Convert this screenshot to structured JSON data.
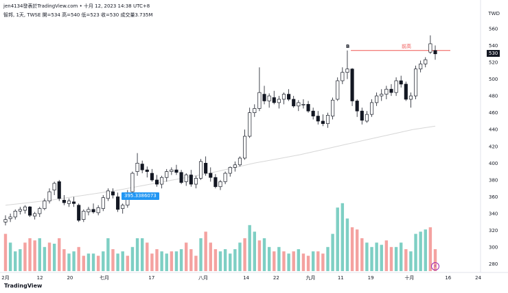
{
  "header": {
    "publisher": "jen4134發表於TradingView.com",
    "timestamp": "十月 12, 2023 14:38 UTC+8",
    "symbol_line": "智邦, 1天, TWSE  開=534  高=540  低=523  收=530  成交量3.735M",
    "currency": "TWD"
  },
  "footer": {
    "brand": "TradingView"
  },
  "overlays": {
    "ma_label": "395.3386073",
    "price_label": "530",
    "level_label": "前高",
    "marker_b": "B",
    "bolt_icon": "lightning-icon"
  },
  "colors": {
    "up": "#ffffff",
    "up_border": "#131722",
    "down": "#131722",
    "vol_up": "#7ecfc4",
    "vol_down": "#f4a2a0",
    "ma": "#d6d6d6",
    "level": "#ef5350",
    "accent": "#2196f3"
  },
  "chart_data": {
    "type": "candlestick",
    "y_ticks": [
      280,
      300,
      320,
      340,
      360,
      380,
      400,
      420,
      440,
      460,
      480,
      500,
      520,
      540,
      560
    ],
    "ylim": [
      270,
      568
    ],
    "x_labels": [
      "2月",
      "12",
      "20",
      "七月",
      "17",
      "八月",
      "14",
      "22",
      "九月",
      "11",
      "19",
      "十月",
      "16",
      "24"
    ],
    "level": 534,
    "series": [
      {
        "name": "price",
        "values": [
          [
            330,
            338,
            326,
            333
          ],
          [
            334,
            340,
            330,
            336
          ],
          [
            336,
            345,
            333,
            343
          ],
          [
            343,
            348,
            339,
            345
          ],
          [
            344,
            350,
            340,
            348
          ],
          [
            348,
            349,
            336,
            338
          ],
          [
            337,
            342,
            333,
            340
          ],
          [
            340,
            348,
            336,
            346
          ],
          [
            346,
            358,
            344,
            355
          ],
          [
            355,
            370,
            352,
            366
          ],
          [
            368,
            378,
            362,
            376
          ],
          [
            378,
            380,
            355,
            358
          ],
          [
            356,
            362,
            350,
            353
          ],
          [
            352,
            358,
            348,
            355
          ],
          [
            354,
            360,
            348,
            352
          ],
          [
            350,
            352,
            330,
            332
          ],
          [
            333,
            345,
            330,
            343
          ],
          [
            342,
            348,
            338,
            345
          ],
          [
            345,
            352,
            340,
            342
          ],
          [
            341,
            350,
            338,
            347
          ],
          [
            346,
            362,
            343,
            359
          ],
          [
            358,
            370,
            355,
            367
          ],
          [
            366,
            370,
            358,
            362
          ],
          [
            360,
            365,
            342,
            345
          ],
          [
            346,
            352,
            340,
            350
          ],
          [
            350,
            368,
            347,
            365
          ],
          [
            366,
            390,
            364,
            388
          ],
          [
            390,
            412,
            385,
            400
          ],
          [
            399,
            403,
            388,
            392
          ],
          [
            392,
            396,
            383,
            390
          ],
          [
            388,
            393,
            378,
            380
          ],
          [
            380,
            386,
            372,
            375
          ],
          [
            375,
            385,
            370,
            383
          ],
          [
            383,
            393,
            378,
            390
          ],
          [
            390,
            395,
            386,
            392
          ],
          [
            392,
            398,
            386,
            389
          ],
          [
            389,
            392,
            375,
            377
          ],
          [
            378,
            388,
            373,
            386
          ],
          [
            386,
            392,
            372,
            375
          ],
          [
            375,
            385,
            370,
            382
          ],
          [
            382,
            405,
            380,
            402
          ],
          [
            400,
            408,
            385,
            388
          ],
          [
            388,
            395,
            378,
            383
          ],
          [
            383,
            387,
            370,
            372
          ],
          [
            372,
            380,
            368,
            378
          ],
          [
            378,
            390,
            375,
            388
          ],
          [
            388,
            396,
            384,
            395
          ],
          [
            395,
            402,
            390,
            398
          ],
          [
            398,
            408,
            396,
            406
          ],
          [
            406,
            440,
            404,
            432
          ],
          [
            432,
            466,
            430,
            460
          ],
          [
            460,
            470,
            455,
            465
          ],
          [
            465,
            514,
            462,
            484
          ],
          [
            482,
            492,
            470,
            474
          ],
          [
            474,
            483,
            466,
            480
          ],
          [
            478,
            486,
            470,
            472
          ],
          [
            472,
            480,
            465,
            476
          ],
          [
            476,
            484,
            470,
            482
          ],
          [
            482,
            488,
            474,
            476
          ],
          [
            476,
            480,
            466,
            468
          ],
          [
            468,
            475,
            462,
            472
          ],
          [
            470,
            476,
            465,
            470
          ],
          [
            470,
            474,
            460,
            462
          ],
          [
            462,
            466,
            452,
            456
          ],
          [
            456,
            462,
            446,
            450
          ],
          [
            450,
            458,
            444,
            447
          ],
          [
            447,
            460,
            442,
            457
          ],
          [
            456,
            478,
            452,
            475
          ],
          [
            476,
            502,
            474,
            498
          ],
          [
            498,
            514,
            494,
            508
          ],
          [
            508,
            534,
            500,
            512
          ],
          [
            512,
            513,
            468,
            474
          ],
          [
            474,
            476,
            455,
            462
          ],
          [
            462,
            466,
            446,
            451
          ],
          [
            450,
            462,
            448,
            458
          ],
          [
            458,
            476,
            455,
            472
          ],
          [
            472,
            484,
            468,
            480
          ],
          [
            480,
            488,
            474,
            482
          ],
          [
            482,
            492,
            476,
            488
          ],
          [
            488,
            494,
            480,
            484
          ],
          [
            484,
            502,
            480,
            498
          ],
          [
            498,
            504,
            490,
            494
          ],
          [
            494,
            497,
            474,
            476
          ],
          [
            476,
            484,
            466,
            480
          ],
          [
            480,
            516,
            476,
            512
          ],
          [
            512,
            522,
            508,
            518
          ],
          [
            518,
            526,
            514,
            523
          ],
          [
            532,
            552,
            530,
            542
          ],
          [
            534,
            540,
            523,
            530
          ]
        ]
      },
      {
        "name": "volume",
        "values": [
          [
            34,
            0
          ],
          [
            26,
            1
          ],
          [
            18,
            1
          ],
          [
            20,
            1
          ],
          [
            26,
            0
          ],
          [
            30,
            0
          ],
          [
            28,
            0
          ],
          [
            30,
            1
          ],
          [
            22,
            1
          ],
          [
            26,
            0
          ],
          [
            25,
            1
          ],
          [
            30,
            0
          ],
          [
            20,
            0
          ],
          [
            16,
            1
          ],
          [
            18,
            1
          ],
          [
            22,
            0
          ],
          [
            14,
            0
          ],
          [
            16,
            1
          ],
          [
            16,
            1
          ],
          [
            14,
            0
          ],
          [
            18,
            1
          ],
          [
            30,
            1
          ],
          [
            20,
            0
          ],
          [
            16,
            1
          ],
          [
            18,
            1
          ],
          [
            14,
            0
          ],
          [
            22,
            1
          ],
          [
            30,
            1
          ],
          [
            30,
            1
          ],
          [
            26,
            0
          ],
          [
            16,
            0
          ],
          [
            20,
            0
          ],
          [
            18,
            1
          ],
          [
            16,
            1
          ],
          [
            18,
            0
          ],
          [
            18,
            1
          ],
          [
            20,
            1
          ],
          [
            26,
            0
          ],
          [
            20,
            0
          ],
          [
            14,
            0
          ],
          [
            30,
            1
          ],
          [
            36,
            0
          ],
          [
            26,
            0
          ],
          [
            20,
            0
          ],
          [
            18,
            1
          ],
          [
            20,
            1
          ],
          [
            16,
            1
          ],
          [
            20,
            1
          ],
          [
            26,
            1
          ],
          [
            30,
            0
          ],
          [
            42,
            1
          ],
          [
            36,
            1
          ],
          [
            28,
            0
          ],
          [
            30,
            1
          ],
          [
            22,
            1
          ],
          [
            18,
            0
          ],
          [
            22,
            1
          ],
          [
            18,
            0
          ],
          [
            16,
            1
          ],
          [
            18,
            0
          ],
          [
            20,
            1
          ],
          [
            16,
            0
          ],
          [
            14,
            0
          ],
          [
            18,
            1
          ],
          [
            18,
            0
          ],
          [
            16,
            0
          ],
          [
            22,
            1
          ],
          [
            34,
            1
          ],
          [
            58,
            1
          ],
          [
            62,
            1
          ],
          [
            48,
            1
          ],
          [
            40,
            0
          ],
          [
            38,
            0
          ],
          [
            30,
            0
          ],
          [
            26,
            1
          ],
          [
            22,
            1
          ],
          [
            26,
            1
          ],
          [
            24,
            1
          ],
          [
            28,
            0
          ],
          [
            22,
            0
          ],
          [
            22,
            1
          ],
          [
            26,
            1
          ],
          [
            20,
            0
          ],
          [
            18,
            1
          ],
          [
            34,
            1
          ],
          [
            36,
            1
          ],
          [
            38,
            1
          ],
          [
            40,
            0
          ],
          [
            20,
            0
          ]
        ]
      }
    ],
    "ma": [
      350,
      353,
      356,
      360,
      364,
      368,
      373,
      378,
      383,
      388,
      394,
      400,
      405,
      410,
      416,
      422,
      428,
      434,
      440,
      444
    ]
  }
}
